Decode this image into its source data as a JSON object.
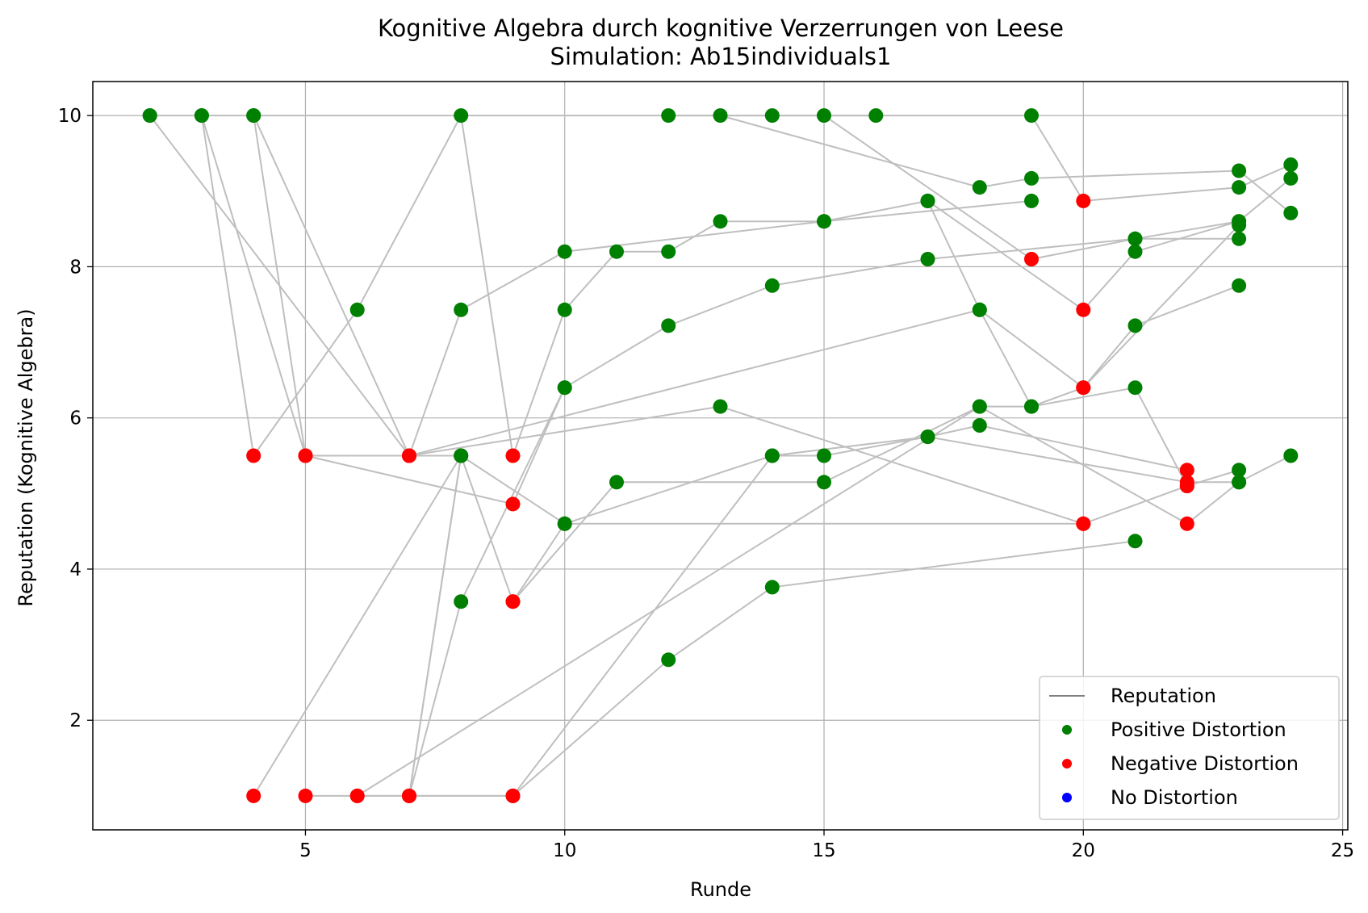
{
  "chart_data": {
    "type": "scatter",
    "title": "Kognitive Algebra durch kognitive Verzerrungen von Leese",
    "subtitle": "Simulation: Ab15individuals1",
    "xlabel": "Runde",
    "ylabel": "Reputation (Kognitive Algebra)",
    "xlim": [
      0.9,
      25.1
    ],
    "ylim": [
      0.55,
      10.45
    ],
    "xticks": [
      5,
      10,
      15,
      20,
      25
    ],
    "yticks": [
      2,
      4,
      6,
      8,
      10
    ],
    "grid": true,
    "legend_position": "bottom-right",
    "legend": [
      {
        "label": "Reputation",
        "kind": "line",
        "color": "#808080"
      },
      {
        "label": "Positive Distortion",
        "kind": "marker",
        "color": "#008000"
      },
      {
        "label": "Negative Distortion",
        "kind": "marker",
        "color": "#ff0000"
      },
      {
        "label": "No Distortion",
        "kind": "marker",
        "color": "#0000ff"
      }
    ],
    "colors": {
      "positive": "#008000",
      "negative": "#ff0000",
      "none": "#0000ff",
      "line": "#bfbfbf",
      "grid": "#b0b0b0"
    },
    "series": [
      {
        "points": [
          [
            2,
            10,
            "p"
          ],
          [
            7,
            5.5,
            "n"
          ],
          [
            18,
            7.43,
            "p"
          ],
          [
            20,
            6.4,
            "n"
          ],
          [
            21,
            7.22,
            "p"
          ],
          [
            23,
            7.75,
            "p"
          ]
        ]
      },
      {
        "points": [
          [
            3,
            10,
            "p"
          ],
          [
            4,
            5.5,
            "n"
          ],
          [
            6,
            7.43,
            "p"
          ],
          [
            8,
            10,
            "p"
          ],
          [
            9,
            5.5,
            "n"
          ],
          [
            10,
            7.43,
            "p"
          ],
          [
            11,
            8.2,
            "p"
          ],
          [
            12,
            8.2,
            "p"
          ],
          [
            13,
            8.6,
            "p"
          ],
          [
            15,
            8.6,
            "p"
          ],
          [
            17,
            8.87,
            "p"
          ],
          [
            20,
            7.43,
            "n"
          ],
          [
            21,
            8.2,
            "p"
          ],
          [
            23,
            8.6,
            "p"
          ],
          [
            24,
            9.17,
            "p"
          ]
        ]
      },
      {
        "points": [
          [
            3,
            10,
            "p"
          ],
          [
            5,
            5.5,
            "n"
          ],
          [
            9,
            4.86,
            "n"
          ],
          [
            10,
            6.4,
            "p"
          ],
          [
            12,
            7.22,
            "p"
          ],
          [
            14,
            7.75,
            "p"
          ],
          [
            17,
            8.1,
            "p"
          ],
          [
            21,
            8.37,
            "p"
          ],
          [
            23,
            8.37,
            "p"
          ]
        ]
      },
      {
        "points": [
          [
            4,
            10,
            "p"
          ],
          [
            7,
            5.5,
            "n"
          ],
          [
            8,
            7.43,
            "p"
          ],
          [
            10,
            8.2,
            "p"
          ],
          [
            15,
            8.6,
            "p"
          ],
          [
            19,
            8.87,
            "p"
          ]
        ]
      },
      {
        "points": [
          [
            4,
            10,
            "p"
          ],
          [
            5,
            5.5,
            "n"
          ],
          [
            8,
            5.5,
            "p"
          ],
          [
            9,
            3.57,
            "n"
          ],
          [
            10,
            4.6,
            "p"
          ],
          [
            14,
            5.5,
            "p"
          ],
          [
            17,
            5.75,
            "p"
          ],
          [
            18,
            5.9,
            "p"
          ],
          [
            22,
            5.31,
            "n"
          ]
        ]
      },
      {
        "points": [
          [
            4,
            1,
            "n"
          ],
          [
            8,
            5.5,
            "p"
          ],
          [
            7,
            1,
            "n"
          ],
          [
            8,
            3.57,
            "p"
          ],
          [
            10,
            6.4,
            "p"
          ]
        ]
      },
      {
        "points": [
          [
            5,
            1,
            "n"
          ],
          [
            9,
            1,
            "n"
          ],
          [
            12,
            2.8,
            "p"
          ],
          [
            14,
            3.76,
            "p"
          ],
          [
            21,
            4.37,
            "p"
          ]
        ]
      },
      {
        "points": [
          [
            6,
            1,
            "n"
          ],
          [
            7,
            1,
            "n"
          ],
          [
            8,
            5.5,
            "p"
          ],
          [
            10,
            4.6,
            "p"
          ],
          [
            20,
            4.6,
            "n"
          ],
          [
            22,
            5.1,
            "n"
          ],
          [
            23,
            5.31,
            "p"
          ]
        ]
      },
      {
        "points": [
          [
            7,
            1,
            "n"
          ],
          [
            9,
            1,
            "n"
          ],
          [
            14,
            5.5,
            "p"
          ],
          [
            15,
            5.5,
            "p"
          ],
          [
            17,
            5.75,
            "p"
          ],
          [
            22,
            5.15,
            "n"
          ],
          [
            23,
            5.15,
            "p"
          ],
          [
            24,
            5.5,
            "p"
          ]
        ]
      },
      {
        "points": [
          [
            6,
            1,
            "n"
          ],
          [
            18,
            6.15,
            "p"
          ],
          [
            19,
            6.15,
            "p"
          ],
          [
            21,
            6.4,
            "p"
          ],
          [
            22,
            5.1,
            "n"
          ]
        ]
      },
      {
        "points": [
          [
            9,
            3.57,
            "n"
          ],
          [
            11,
            5.15,
            "p"
          ],
          [
            15,
            5.15,
            "p"
          ],
          [
            18,
            6.15,
            "p"
          ],
          [
            22,
            4.6,
            "n"
          ],
          [
            23,
            5.15,
            "p"
          ]
        ]
      },
      {
        "points": [
          [
            7,
            5.5,
            "n"
          ],
          [
            13,
            6.15,
            "p"
          ],
          [
            20,
            4.6,
            "n"
          ]
        ]
      },
      {
        "points": [
          [
            15,
            10,
            "p"
          ],
          [
            19,
            8.1,
            "n"
          ],
          [
            21,
            8.37,
            "p"
          ],
          [
            23,
            8.6,
            "p"
          ]
        ]
      },
      {
        "points": [
          [
            12,
            10,
            "p"
          ],
          [
            19,
            10,
            "p"
          ],
          [
            20,
            8.87,
            "n"
          ],
          [
            23,
            9.05,
            "p"
          ],
          [
            24,
            9.35,
            "p"
          ]
        ]
      },
      {
        "points": [
          [
            13,
            10,
            "p"
          ],
          [
            18,
            9.05,
            "p"
          ],
          [
            19,
            9.17,
            "p"
          ],
          [
            23,
            9.27,
            "p"
          ],
          [
            24,
            8.71,
            "p"
          ]
        ]
      },
      {
        "points": [
          [
            2,
            10,
            "p"
          ],
          [
            16,
            10,
            "p"
          ],
          [
            14,
            10,
            "p"
          ]
        ]
      },
      {
        "points": [
          [
            17,
            8.87,
            "p"
          ],
          [
            18,
            7.43,
            "p"
          ],
          [
            19,
            6.15,
            "p"
          ],
          [
            20,
            6.4,
            "n"
          ],
          [
            23,
            8.55,
            "p"
          ]
        ]
      }
    ]
  }
}
